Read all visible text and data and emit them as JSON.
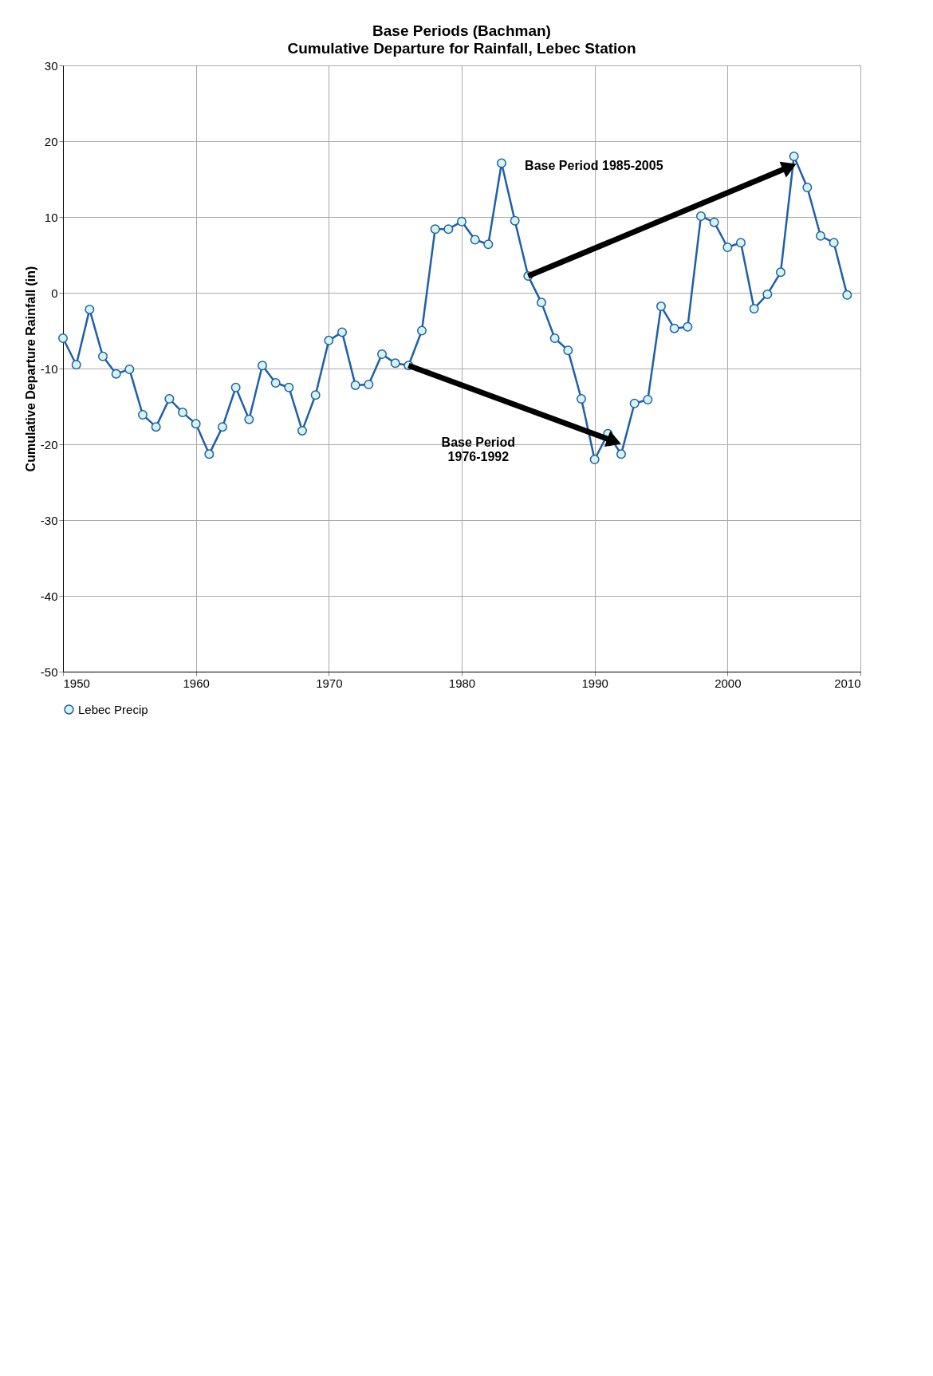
{
  "chart_data": {
    "type": "line",
    "title": "Base Periods (Bachman)",
    "subtitle": "Cumulative Departure for Rainfall, Lebec Station",
    "ylabel": "Cumulative Departure Rainfall (in)",
    "x": [
      1950,
      1951,
      1952,
      1953,
      1954,
      1955,
      1956,
      1957,
      1958,
      1959,
      1960,
      1961,
      1962,
      1963,
      1964,
      1965,
      1966,
      1967,
      1968,
      1969,
      1970,
      1971,
      1972,
      1973,
      1974,
      1975,
      1976,
      1977,
      1978,
      1979,
      1980,
      1981,
      1982,
      1983,
      1984,
      1985,
      1986,
      1987,
      1988,
      1989,
      1990,
      1991,
      1992,
      1993,
      1994,
      1995,
      1996,
      1997,
      1998,
      1999,
      2000,
      2001,
      2002,
      2003,
      2004,
      2005,
      2006,
      2007,
      2008,
      2009
    ],
    "series": [
      {
        "name": "Lebec Precip",
        "color": "#1f5fa8",
        "marker": "circle",
        "values": [
          -6,
          -9.5,
          -2.2,
          -8.4,
          -10.7,
          -10.1,
          -16.1,
          -17.7,
          -14,
          -15.8,
          -17.3,
          -21.3,
          -17.7,
          -12.5,
          -16.7,
          -9.6,
          -11.9,
          -12.5,
          -18.2,
          -13.5,
          -6.3,
          -5.2,
          -12.2,
          -12.1,
          -8.1,
          -9.3,
          -9.6,
          -5,
          8.4,
          8.4,
          9.4,
          7,
          6.4,
          17.1,
          9.5,
          2.2,
          -1.3,
          -6,
          -7.6,
          -14,
          -22,
          -18.6,
          -21.3,
          -14.6,
          -14.1,
          -1.8,
          -4.7,
          -4.5,
          10.1,
          9.3,
          6,
          6.6,
          -2.1,
          -0.2,
          2.7,
          18,
          13.9,
          7.5,
          6.6,
          -0.3
        ]
      },
      {
        "type": "line",
        "color": "#000000",
        "x": [
          1976,
          1991.3
        ],
        "values": [
          -9.6,
          -19.5
        ]
      },
      {
        "type": "line",
        "color": "#000000",
        "x": [
          1985,
          2004.5
        ],
        "values": [
          2.2,
          16.5
        ]
      }
    ],
    "annotations": [
      "Base Period\n1976-1992",
      "Base Period 1985-2005"
    ],
    "xlim": [
      1950,
      2010
    ],
    "xticks": [
      1950,
      1960,
      1970,
      1980,
      1990,
      2000,
      2010
    ],
    "ylim": [
      -50,
      30
    ],
    "yticks": [
      -50,
      -40,
      -30,
      -20,
      -10,
      0,
      10,
      20,
      30
    ],
    "grid": true,
    "legend": "bottom"
  }
}
